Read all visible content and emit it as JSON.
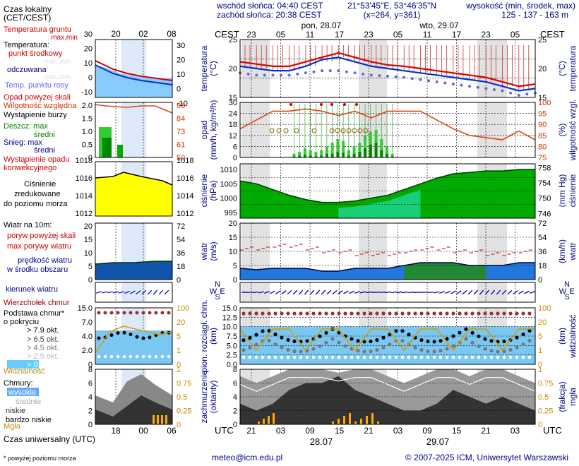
{
  "header": {
    "sunrise": "wschód słońca: 04:40 CEST",
    "sunset": "zachód słońca: 20:38 CEST",
    "coords": "21°53'45\"E, 53°46'35\"N",
    "grid": "(x=264,  y=361)",
    "height_title": "wysokość (min, środek, max)",
    "height_values": "125 - 137 - 163 m",
    "day1": "pon, 28.07",
    "day2": "wto, 29.07",
    "cest": "CEST",
    "utc": "UTC"
  },
  "left": {
    "local_time": "Czas lokalny",
    "local_time2": "(CET/CEST)",
    "top_ticks": [
      "20",
      "02",
      "08"
    ],
    "bottom_ticks": [
      "18",
      "00",
      "06"
    ],
    "soil_temp": "Temperatura gruntu",
    "soil_temp2": "max,min",
    "temperature": "Temperatura:",
    "mid_point": "punkt środkowy",
    "max_min": "max,min",
    "perceived": "odczuwana",
    "max_min2": "max,min",
    "dew_point": "Temp. punktu rosy",
    "precip_above": "Opad powyżej skali",
    "rel_humidity": "Wilgotność względna",
    "storm": "Wystąpienie burzy",
    "rain": "Deszcz: max",
    "rain_mean": "średni",
    "snow": "Śnieg: max",
    "snow_mean": "średni",
    "conv": "Wystąpienie opadu",
    "conv2": "konwekcyjnego",
    "pressure1": "Ciśnienie",
    "pressure2": "zredukowane",
    "pressure3": "do poziomu morza",
    "wind_title": "Wiatr na 10m:",
    "gust_above": "poryw powyżej skali",
    "gust_max": "max porywy wiatru",
    "wind_speed": "prędkość wiatru",
    "wind_area": "w środku obszaru",
    "wind_dir": "kierunek wiatru",
    "cloud_top": "Wierzchołek chmur",
    "cloud_base": "Podstawa chmur*",
    "cloud_base2": "o pokryciu",
    "okt": [
      "> 7.9 okt.",
      "> 6.5 okt.",
      "> 4.5 okt.",
      "> 2.5 okt.",
      "> 0.1 okt."
    ],
    "visibility": "Widzialność",
    "clouds": "Chmury:",
    "high": "wysokie",
    "middle": "średnie",
    "low": "niskie",
    "very_low": "bardzo niskie",
    "fog": "Mgła",
    "utc_time": "Czas uniwersalny (UTC)",
    "footnote": "* powyżej poziomu morza"
  },
  "axes": {
    "temperature": "temperatura",
    "temperature_unit": "(°C)",
    "precip": "opad",
    "precip_unit": "(mm/h, kg/m²/h)",
    "humidity": "wilgotność wzgl.",
    "humidity_unit": "(%)",
    "pressure": "ciśnienie",
    "pressure_unit": "(hPa)",
    "pressure_unit2": "(mm Hg)",
    "wind": "wiatr",
    "wind_unit": "(m/s)",
    "wind_unit2": "(km/h)",
    "cloudbase1": "pion. rozciągł. chm.",
    "cloudbase2": "(km)",
    "visibility": "widzialność",
    "visibility_unit": "(km)",
    "cloudcover1": "zachmurzenie",
    "cloudcover2": "(oktanty)",
    "fog": "mgła",
    "fog_unit": "(frakcja)"
  },
  "ticks": {
    "top": [
      "23",
      "05",
      "11",
      "17",
      "23",
      "05",
      "11",
      "17",
      "23",
      "05"
    ],
    "bottom": [
      "21",
      "03",
      "09",
      "15",
      "21",
      "03",
      "09",
      "15",
      "21",
      "03"
    ],
    "date1": "28.07",
    "date2": "29.07",
    "temp_left": [
      "-10",
      "0",
      "10",
      "20",
      "30"
    ],
    "temp_right": [
      "30",
      "20",
      "10",
      "0",
      "-10"
    ],
    "temp_main": [
      "15",
      "20",
      "25"
    ],
    "precip_main": [
      "0",
      "6",
      "12",
      "18",
      "24",
      "30"
    ],
    "hum_main": [
      "75",
      "80",
      "85",
      "90",
      "95",
      "100"
    ],
    "precip_left": [
      "0",
      "0.5",
      "1.0",
      "1.5",
      "2.0"
    ],
    "hum_left": [
      "50",
      "61",
      "73",
      "84",
      "96"
    ],
    "pres_left": [
      "1012",
      "1014",
      "1016",
      "1018"
    ],
    "pres_main": [
      "995",
      "1000",
      "1005",
      "1010"
    ],
    "pres_mmhg": [
      "746",
      "750",
      "754",
      "758"
    ],
    "wind_ms": [
      "0",
      "5",
      "10",
      "15",
      "20"
    ],
    "wind_kmh": [
      "0",
      "18",
      "36",
      "54",
      "72"
    ],
    "cb_left": [
      "0",
      "2.0",
      "4.0",
      "7.0",
      "15.0"
    ],
    "vis_right": [
      "0",
      "1",
      "5",
      "20",
      "100"
    ],
    "cb_main": [
      "0.0",
      "2.5",
      "5.0",
      "7.5",
      "10.0",
      "12.5",
      "15.0"
    ],
    "cc_left": [
      "0",
      "2",
      "4",
      "6",
      "8"
    ],
    "fog_right": [
      "0",
      "0.25",
      "0.5",
      "0.75",
      "1"
    ],
    "compass": [
      "N",
      "W",
      "E",
      "S"
    ]
  },
  "footer": {
    "email": "meteo@icm.edu.pl",
    "copyright": "© 2007-2025 ICM, Uniwersytet Warszawski"
  },
  "chart_data": [
    {
      "type": "line",
      "title": "temperatura",
      "ylabel": "(°C)",
      "ylim": [
        12,
        25
      ],
      "x_hours_utc": [
        0,
        3,
        6,
        9,
        12,
        15,
        18,
        21,
        24,
        27,
        30,
        33,
        36,
        39,
        42,
        45,
        48,
        51,
        54
      ],
      "series": [
        {
          "name": "punkt środkowy",
          "values": [
            20,
            19.5,
            19,
            19,
            20,
            21,
            22,
            21,
            20,
            19.3,
            19,
            18.5,
            18,
            17.5,
            17,
            16.5,
            15.5,
            14.5,
            15
          ]
        },
        {
          "name": "odczuwana",
          "values": [
            19,
            18.5,
            18,
            18,
            19,
            20.5,
            21,
            20,
            19,
            18.5,
            18,
            17.5,
            17,
            16.5,
            16,
            15.5,
            14.5,
            13.5,
            14
          ]
        },
        {
          "name": "Temp. punktu rosy",
          "values": [
            17.5,
            17,
            17,
            17,
            17.5,
            18,
            18,
            17.5,
            17,
            16.8,
            16.5,
            16,
            15.5,
            15,
            14.5,
            14,
            13.5,
            12.5,
            13
          ]
        }
      ]
    },
    {
      "type": "bar",
      "title": "opad",
      "ylabel": "(mm/h, kg/m²/h)",
      "ylim": [
        0,
        30
      ],
      "x_hours_utc": [
        6,
        7,
        8,
        9,
        10,
        11,
        12,
        13,
        14,
        15,
        16,
        17,
        18,
        19,
        20,
        21,
        22,
        23,
        24
      ],
      "series": [
        {
          "name": "Deszcz: max",
          "values": [
            2,
            3,
            5,
            4,
            3,
            4,
            6,
            8,
            10,
            9,
            4,
            6,
            8,
            12,
            14,
            15,
            10,
            6,
            2
          ]
        },
        {
          "name": "Deszcz: średni",
          "values": [
            0.5,
            1,
            1.5,
            1,
            0.5,
            1,
            2,
            2,
            3,
            2.5,
            1,
            2,
            3,
            5,
            7,
            8,
            4,
            2,
            0.5
          ]
        }
      ]
    },
    {
      "type": "line",
      "title": "wilgotność wzgl.",
      "ylabel": "(%)",
      "ylim": [
        75,
        100
      ],
      "x_hours_utc": [
        0,
        3,
        6,
        9,
        12,
        15,
        18,
        21,
        24,
        27,
        30,
        33,
        36,
        39,
        42,
        45,
        48,
        51,
        54
      ],
      "series": [
        {
          "name": "Wilgotność względna",
          "values": [
            88,
            92,
            96,
            96,
            97,
            96,
            94,
            96,
            93,
            96,
            96,
            96,
            92,
            88,
            85,
            84,
            83,
            87,
            83
          ]
        }
      ]
    },
    {
      "type": "area",
      "title": "ciśnienie",
      "ylabel": "(hPa)",
      "ylim": [
        993,
        1012
      ],
      "x_hours_utc": [
        0,
        3,
        6,
        9,
        12,
        15,
        18,
        21,
        24,
        27,
        30,
        33,
        36,
        39,
        42,
        45,
        48,
        51,
        54
      ],
      "series": [
        {
          "name": "Ciśnienie",
          "values": [
            1006,
            1005,
            1003,
            1001,
            999.5,
            998.5,
            998.5,
            999,
            1000,
            1001,
            1003,
            1005,
            1007,
            1008.5,
            1009,
            1009.5,
            1009.5,
            1010,
            1010
          ]
        }
      ]
    },
    {
      "type": "line",
      "title": "wiatr",
      "ylabel": "(m/s)",
      "ylim": [
        0,
        20
      ],
      "x_hours_utc": [
        0,
        3,
        6,
        9,
        12,
        15,
        18,
        21,
        24,
        27,
        30,
        33,
        36,
        39,
        42,
        45,
        48,
        51,
        54
      ],
      "series": [
        {
          "name": "max porywy wiatru",
          "values": [
            11,
            11,
            12,
            12,
            11,
            10,
            10,
            9,
            9,
            9,
            10,
            11,
            11,
            10,
            10,
            9,
            9,
            10,
            11
          ]
        },
        {
          "name": "prędkość wiatru",
          "values": [
            4,
            3.5,
            4,
            4,
            4,
            3,
            3,
            4,
            4,
            4,
            5,
            6,
            6,
            6,
            5,
            5,
            5,
            6,
            6
          ]
        }
      ]
    },
    {
      "type": "area",
      "title": "zachmurzenie",
      "ylabel": "(oktanty)",
      "ylim": [
        0,
        8
      ],
      "x_hours_utc": [
        0,
        3,
        6,
        9,
        12,
        15,
        18,
        21,
        24,
        27,
        30,
        33,
        36,
        39,
        42,
        45,
        48,
        51,
        54
      ],
      "series": [
        {
          "name": "wysokie",
          "values": [
            7,
            6,
            7,
            8,
            8,
            8,
            7.5,
            8,
            8,
            7,
            6,
            7,
            8,
            8,
            7,
            8,
            8,
            7,
            6
          ]
        },
        {
          "name": "niskie",
          "values": [
            3,
            2,
            3,
            5,
            6,
            6,
            7,
            5,
            4,
            3,
            2,
            2,
            3,
            5,
            4,
            3,
            4,
            3,
            2
          ]
        }
      ]
    }
  ]
}
